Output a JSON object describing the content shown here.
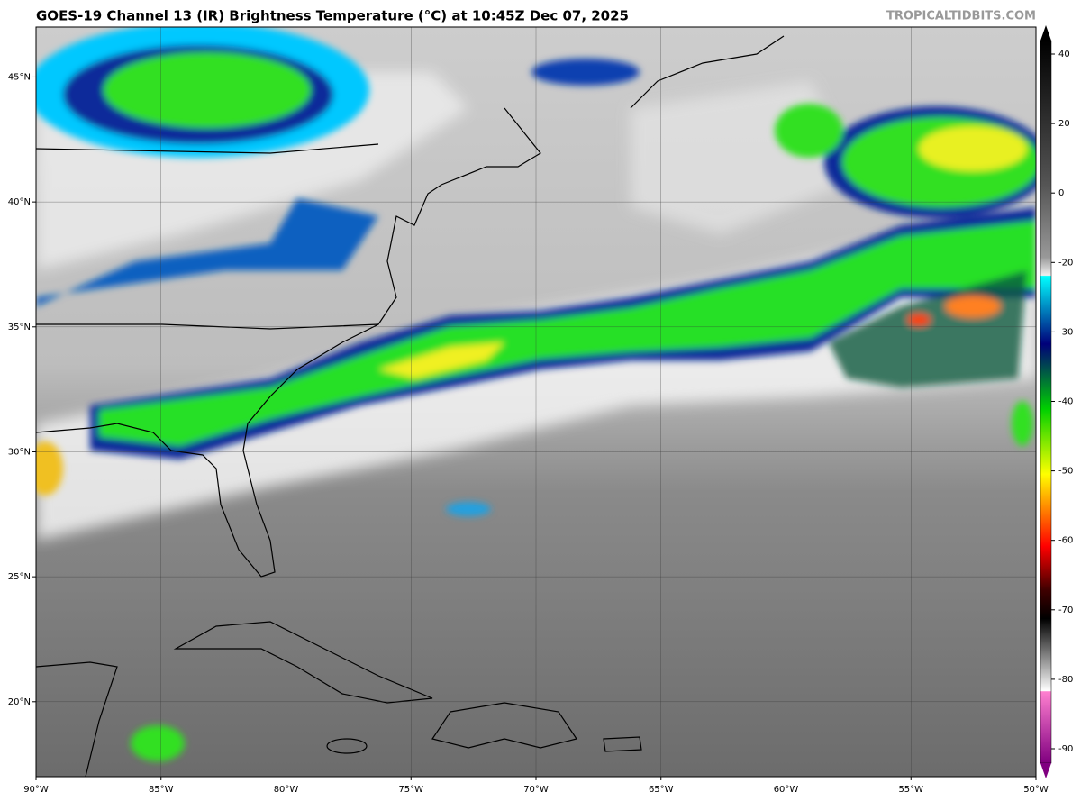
{
  "header": {
    "title": "GOES-19 Channel 13 (IR) Brightness Temperature (°C) at 10:45Z Dec 07, 2025",
    "source": "TROPICALTIDBITS.COM"
  },
  "map": {
    "lonlim": [
      -90,
      -50
    ],
    "latlim": [
      17,
      47
    ],
    "lonticks": [
      {
        "value": -90,
        "label": "90°W"
      },
      {
        "value": -85,
        "label": "85°W"
      },
      {
        "value": -80,
        "label": "80°W"
      },
      {
        "value": -75,
        "label": "75°W"
      },
      {
        "value": -70,
        "label": "70°W"
      },
      {
        "value": -65,
        "label": "65°W"
      },
      {
        "value": -60,
        "label": "60°W"
      },
      {
        "value": -55,
        "label": "55°W"
      },
      {
        "value": -50,
        "label": "50°W"
      }
    ],
    "latticks": [
      {
        "value": 20,
        "label": "20°N"
      },
      {
        "value": 25,
        "label": "25°N"
      },
      {
        "value": 30,
        "label": "30°N"
      },
      {
        "value": 35,
        "label": "35°N"
      },
      {
        "value": 40,
        "label": "40°N"
      },
      {
        "value": 45,
        "label": "45°N"
      }
    ]
  },
  "colorbar": {
    "ticks": [
      40,
      20,
      0,
      -20,
      -30,
      -40,
      -50,
      -60,
      -70,
      -80,
      -90
    ]
  }
}
